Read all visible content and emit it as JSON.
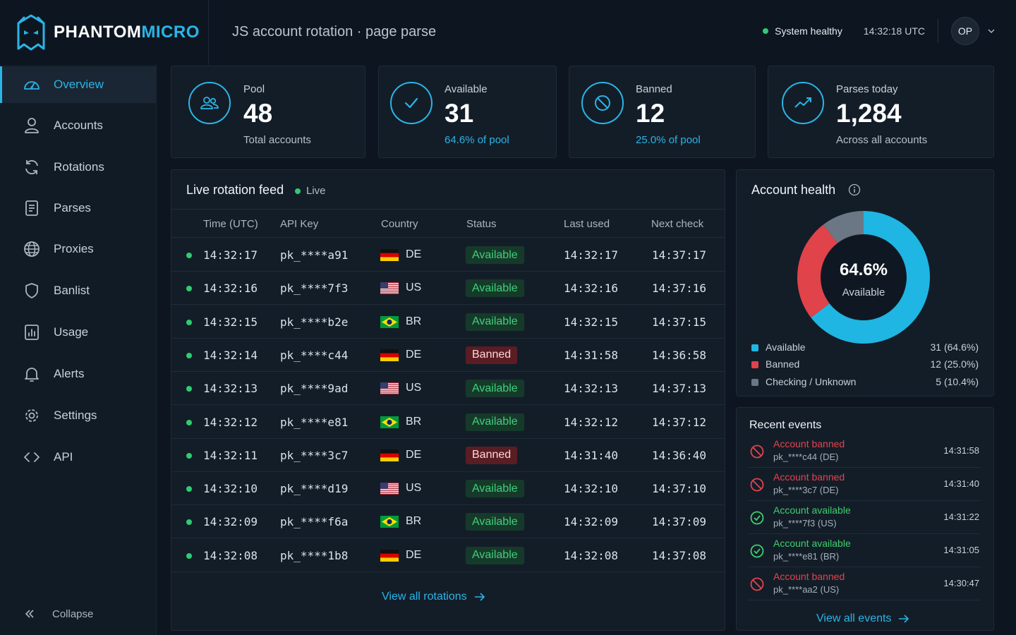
{
  "brand": {
    "name_primary": "PHANTOM",
    "name_accent": "MICRO"
  },
  "header": {
    "title": "JS account rotation · page parse",
    "status": "System healthy",
    "clock": "14:32:18 UTC",
    "avatar": "OP"
  },
  "sidebar": {
    "items": [
      {
        "label": "Overview",
        "icon": "gauge-icon",
        "active": true
      },
      {
        "label": "Accounts",
        "icon": "user-icon"
      },
      {
        "label": "Rotations",
        "icon": "refresh-icon"
      },
      {
        "label": "Parses",
        "icon": "document-icon"
      },
      {
        "label": "Proxies",
        "icon": "globe-icon"
      },
      {
        "label": "Banlist",
        "icon": "shield-icon"
      },
      {
        "label": "Usage",
        "icon": "bar-chart-icon"
      },
      {
        "label": "Alerts",
        "icon": "bell-icon"
      },
      {
        "label": "Settings",
        "icon": "gear-icon"
      },
      {
        "label": "API",
        "icon": "code-icon"
      }
    ],
    "collapse_label": "Collapse"
  },
  "stats": {
    "pool": {
      "label": "Pool",
      "value": "48",
      "sub": "Total accounts"
    },
    "available": {
      "label": "Available",
      "value": "31",
      "sub": "64.6% of pool"
    },
    "banned": {
      "label": "Banned",
      "value": "12",
      "sub": "25.0% of pool"
    },
    "parses": {
      "label": "Parses today",
      "value": "1,284",
      "sub": "Across all accounts"
    }
  },
  "feed": {
    "title": "Live rotation feed",
    "live_label": "Live",
    "columns": [
      "Time (UTC)",
      "API Key",
      "Country",
      "Status",
      "Last used",
      "Next check"
    ],
    "rows": [
      {
        "time": "14:32:17",
        "key": "pk_****a91",
        "country": "DE",
        "status": "Available",
        "last": "14:32:17",
        "next": "14:37:17"
      },
      {
        "time": "14:32:16",
        "key": "pk_****7f3",
        "country": "US",
        "status": "Available",
        "last": "14:32:16",
        "next": "14:37:16"
      },
      {
        "time": "14:32:15",
        "key": "pk_****b2e",
        "country": "BR",
        "status": "Available",
        "last": "14:32:15",
        "next": "14:37:15"
      },
      {
        "time": "14:32:14",
        "key": "pk_****c44",
        "country": "DE",
        "status": "Banned",
        "last": "14:31:58",
        "next": "14:36:58"
      },
      {
        "time": "14:32:13",
        "key": "pk_****9ad",
        "country": "US",
        "status": "Available",
        "last": "14:32:13",
        "next": "14:37:13"
      },
      {
        "time": "14:32:12",
        "key": "pk_****e81",
        "country": "BR",
        "status": "Available",
        "last": "14:32:12",
        "next": "14:37:12"
      },
      {
        "time": "14:32:11",
        "key": "pk_****3c7",
        "country": "DE",
        "status": "Banned",
        "last": "14:31:40",
        "next": "14:36:40"
      },
      {
        "time": "14:32:10",
        "key": "pk_****d19",
        "country": "US",
        "status": "Available",
        "last": "14:32:10",
        "next": "14:37:10"
      },
      {
        "time": "14:32:09",
        "key": "pk_****f6a",
        "country": "BR",
        "status": "Available",
        "last": "14:32:09",
        "next": "14:37:09"
      },
      {
        "time": "14:32:08",
        "key": "pk_****1b8",
        "country": "DE",
        "status": "Available",
        "last": "14:32:08",
        "next": "14:37:08"
      }
    ],
    "view_all": "View all rotations"
  },
  "health": {
    "title": "Account health",
    "center_value": "64.6%",
    "center_label": "Available",
    "segments": [
      {
        "name": "Available",
        "display": "31 (64.6%)",
        "percent": 64.6,
        "color": "#1fb6e3"
      },
      {
        "name": "Banned",
        "display": "12 (25.0%)",
        "percent": 25.0,
        "color": "#e0434a"
      },
      {
        "name": "Checking / Unknown",
        "display": "5 (10.4%)",
        "percent": 10.4,
        "color": "#6b7785"
      }
    ]
  },
  "events": {
    "title": "Recent events",
    "items": [
      {
        "title": "Account banned",
        "sub": "pk_****c44 (DE)",
        "time": "14:31:58",
        "type": "ban"
      },
      {
        "title": "Account banned",
        "sub": "pk_****3c7 (DE)",
        "time": "14:31:40",
        "type": "ban"
      },
      {
        "title": "Account available",
        "sub": "pk_****7f3 (US)",
        "time": "14:31:22",
        "type": "ok"
      },
      {
        "title": "Account available",
        "sub": "pk_****e81 (BR)",
        "time": "14:31:05",
        "type": "ok"
      },
      {
        "title": "Account banned",
        "sub": "pk_****aa2 (US)",
        "time": "14:30:47",
        "type": "ban"
      }
    ],
    "view_all": "View all events"
  },
  "colors": {
    "accent": "#2bb4e6",
    "success": "#2ecc71",
    "danger": "#e0434a",
    "background": "#0d1620"
  }
}
